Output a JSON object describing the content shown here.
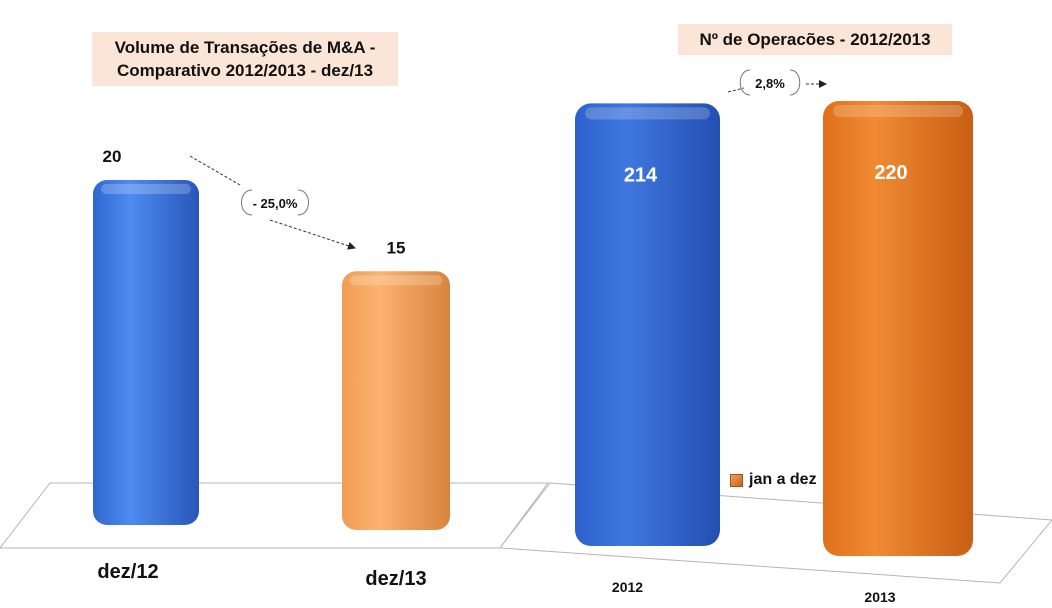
{
  "chart_data": [
    {
      "type": "bar",
      "title": "Volume de Transações de M&A - Comparativo 2012/2013  -  dez/13",
      "title_lines": [
        "Volume de Transações de M&A -",
        "Comparativo 2012/2013  -  dez/13"
      ],
      "categories": [
        "dez/12",
        "dez/13"
      ],
      "values": [
        20,
        15
      ],
      "data_labels": [
        "20",
        "15"
      ],
      "change_label": "- 25,0%",
      "colors": [
        "#3f7be0",
        "#f8a55f"
      ],
      "legend": "none"
    },
    {
      "type": "bar",
      "title": "Nº de Operacões  - 2012/2013",
      "categories": [
        "2012",
        "2013"
      ],
      "values": [
        214,
        220
      ],
      "data_labels": [
        "214",
        "220"
      ],
      "change_label": "2,8%",
      "colors": [
        "#3a6fd8",
        "#ed7d25"
      ],
      "legend_entries": [
        "jan a dez"
      ],
      "legend": "right"
    }
  ]
}
